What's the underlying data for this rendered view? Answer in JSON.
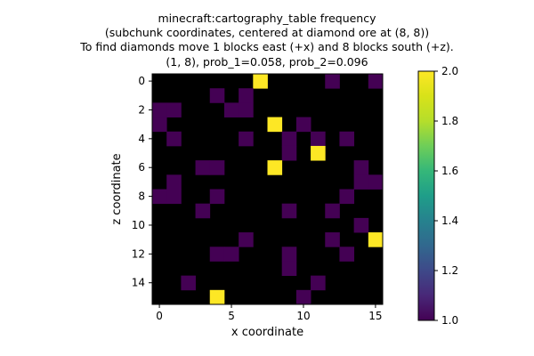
{
  "chart_data": {
    "type": "heatmap",
    "title_lines": [
      "minecraft:cartography_table frequency",
      "(subchunk coordinates, centered at diamond ore at (8, 8))",
      "To find diamonds move 1 blocks east (+x) and 8 blocks south (+z).",
      "(1, 8), prob_1=0.058, prob_2=0.096"
    ],
    "xlabel": "x coordinate",
    "ylabel": "z coordinate",
    "x_ticks": [
      0,
      5,
      10,
      15
    ],
    "y_ticks": [
      0,
      2,
      4,
      6,
      8,
      10,
      12,
      14
    ],
    "colorbar_ticks": [
      "1.0",
      "1.2",
      "1.4",
      "1.6",
      "1.8",
      "2.0"
    ],
    "vmin": 1.0,
    "vmax": 2.0,
    "colormap": "viridis",
    "background_color": "#000000",
    "grid": [
      [
        0,
        0,
        0,
        0,
        0,
        0,
        0,
        2,
        0,
        0,
        0,
        0,
        1,
        0,
        0,
        1
      ],
      [
        0,
        0,
        0,
        0,
        1,
        0,
        1,
        0,
        0,
        0,
        0,
        0,
        0,
        0,
        0,
        0
      ],
      [
        1,
        1,
        0,
        0,
        0,
        1,
        1,
        0,
        0,
        0,
        0,
        0,
        0,
        0,
        0,
        0
      ],
      [
        1,
        0,
        0,
        0,
        0,
        0,
        0,
        0,
        2,
        0,
        1,
        0,
        0,
        0,
        0,
        0
      ],
      [
        0,
        1,
        0,
        0,
        0,
        0,
        1,
        0,
        0,
        1,
        0,
        1,
        0,
        1,
        0,
        0
      ],
      [
        0,
        0,
        0,
        0,
        0,
        0,
        0,
        0,
        0,
        1,
        0,
        2,
        0,
        0,
        0,
        0
      ],
      [
        0,
        0,
        0,
        1,
        1,
        0,
        0,
        0,
        2,
        0,
        0,
        0,
        0,
        0,
        1,
        0
      ],
      [
        0,
        1,
        0,
        0,
        0,
        0,
        0,
        0,
        0,
        0,
        0,
        0,
        0,
        0,
        1,
        1
      ],
      [
        1,
        1,
        0,
        0,
        1,
        0,
        0,
        0,
        0,
        0,
        0,
        0,
        0,
        1,
        0,
        0
      ],
      [
        0,
        0,
        0,
        1,
        0,
        0,
        0,
        0,
        0,
        1,
        0,
        0,
        1,
        0,
        0,
        0
      ],
      [
        0,
        0,
        0,
        0,
        0,
        0,
        0,
        0,
        0,
        0,
        0,
        0,
        0,
        0,
        1,
        0
      ],
      [
        0,
        0,
        0,
        0,
        0,
        0,
        1,
        0,
        0,
        0,
        0,
        0,
        1,
        0,
        0,
        2
      ],
      [
        0,
        0,
        0,
        0,
        1,
        1,
        0,
        0,
        0,
        1,
        0,
        0,
        0,
        1,
        0,
        0
      ],
      [
        0,
        0,
        0,
        0,
        0,
        0,
        0,
        0,
        0,
        1,
        0,
        0,
        0,
        0,
        0,
        0
      ],
      [
        0,
        0,
        1,
        0,
        0,
        0,
        0,
        0,
        0,
        0,
        0,
        1,
        0,
        0,
        0,
        0
      ],
      [
        0,
        0,
        0,
        0,
        2,
        0,
        0,
        0,
        0,
        0,
        1,
        0,
        0,
        0,
        0,
        0
      ]
    ]
  }
}
